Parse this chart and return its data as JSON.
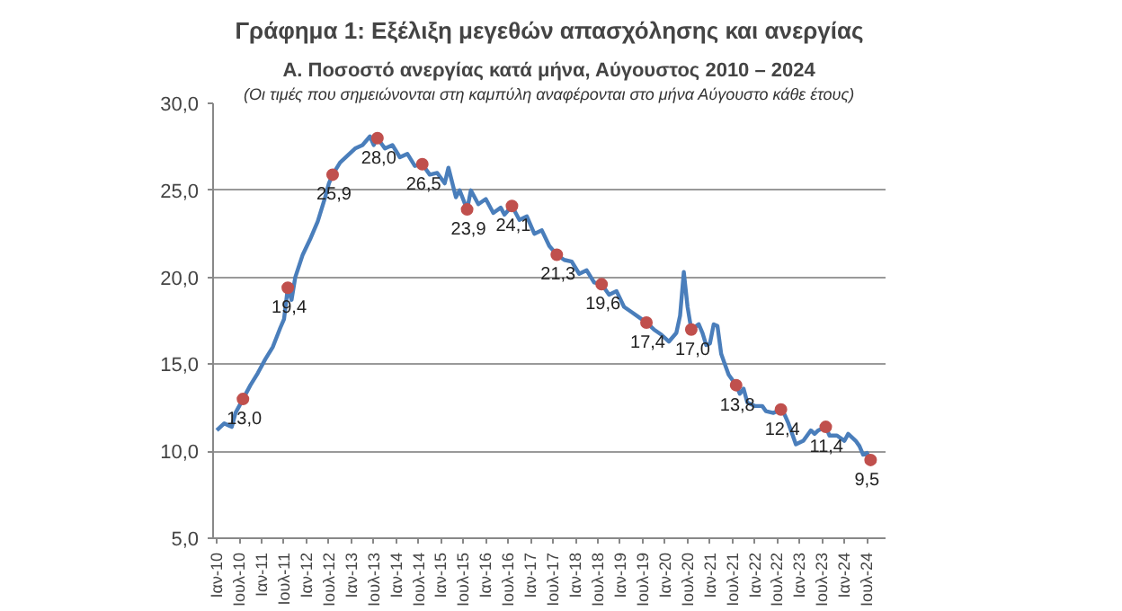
{
  "chart_data": {
    "type": "line",
    "title": "Γράφημα 1: Εξέλιξη μεγεθών απασχόλησης και ανεργίας",
    "subtitle": "Α. Ποσοστό ανεργίας κατά μήνα, Αύγουστος 2010 – 2024",
    "annotations": [
      "(Οι τιμές που σημειώνονται στη καμπύλη αναφέρονται στο μήνα Αύγουστο κάθε έτους)"
    ],
    "grid": "y",
    "ylim": [
      5,
      30
    ],
    "yticks": [
      {
        "value": 5,
        "label": "5,0"
      },
      {
        "value": 10,
        "label": "10,0"
      },
      {
        "value": 15,
        "label": "15,0"
      },
      {
        "value": 20,
        "label": "20,0"
      },
      {
        "value": 25,
        "label": "25,0"
      },
      {
        "value": 30,
        "label": "30,0"
      }
    ],
    "xlim": [
      "2009-12",
      "2024-12"
    ],
    "xticks": [
      {
        "value": "2010-01",
        "label": "Ιαν-10"
      },
      {
        "value": "2010-07",
        "label": "Ιουλ-10"
      },
      {
        "value": "2011-01",
        "label": "Ιαν-11"
      },
      {
        "value": "2011-07",
        "label": "Ιουλ-11"
      },
      {
        "value": "2012-01",
        "label": "Ιαν-12"
      },
      {
        "value": "2012-07",
        "label": "Ιουλ-12"
      },
      {
        "value": "2013-01",
        "label": "Ιαν-13"
      },
      {
        "value": "2013-07",
        "label": "Ιουλ-13"
      },
      {
        "value": "2014-01",
        "label": "Ιαν-14"
      },
      {
        "value": "2014-07",
        "label": "Ιουλ-14"
      },
      {
        "value": "2015-01",
        "label": "Ιαν-15"
      },
      {
        "value": "2015-07",
        "label": "Ιουλ-15"
      },
      {
        "value": "2016-01",
        "label": "Ιαν-16"
      },
      {
        "value": "2016-07",
        "label": "Ιουλ-16"
      },
      {
        "value": "2017-01",
        "label": "Ιαν-17"
      },
      {
        "value": "2017-07",
        "label": "Ιουλ-17"
      },
      {
        "value": "2018-01",
        "label": "Ιαν-18"
      },
      {
        "value": "2018-07",
        "label": "Ιουλ-18"
      },
      {
        "value": "2019-01",
        "label": "Ιαν-19"
      },
      {
        "value": "2019-07",
        "label": "Ιουλ-19"
      },
      {
        "value": "2020-01",
        "label": "Ιαν-20"
      },
      {
        "value": "2020-07",
        "label": "Ιουλ-20"
      },
      {
        "value": "2021-01",
        "label": "Ιαν-21"
      },
      {
        "value": "2021-07",
        "label": "Ιουλ-21"
      },
      {
        "value": "2022-01",
        "label": "Ιαν-22"
      },
      {
        "value": "2022-07",
        "label": "Ιουλ-22"
      },
      {
        "value": "2023-01",
        "label": "Ιαν-23"
      },
      {
        "value": "2023-07",
        "label": "Ιουλ-23"
      },
      {
        "value": "2024-01",
        "label": "Ιαν-24"
      },
      {
        "value": "2024-07",
        "label": "Ιουλ-24"
      }
    ],
    "series": [
      {
        "type": "line",
        "color": "#4a7ebb",
        "marker": "none",
        "line_style": "solid",
        "x": [
          "2010-01",
          "2010-03",
          "2010-05",
          "2010-06",
          "2010-08",
          "2010-10",
          "2010-12",
          "2011-02",
          "2011-04",
          "2011-06",
          "2011-07",
          "2011-08",
          "2011-09",
          "2011-10",
          "2011-12",
          "2012-02",
          "2012-04",
          "2012-06",
          "2012-07",
          "2012-08",
          "2012-10",
          "2012-12",
          "2013-02",
          "2013-04",
          "2013-06",
          "2013-07",
          "2013-08",
          "2013-10",
          "2013-12",
          "2014-02",
          "2014-04",
          "2014-06",
          "2014-08",
          "2014-10",
          "2014-12",
          "2015-02",
          "2015-03",
          "2015-05",
          "2015-06",
          "2015-08",
          "2015-09",
          "2015-11",
          "2016-01",
          "2016-03",
          "2016-05",
          "2016-06",
          "2016-08",
          "2016-10",
          "2016-12",
          "2017-02",
          "2017-04",
          "2017-06",
          "2017-08",
          "2017-10",
          "2017-12",
          "2018-02",
          "2018-04",
          "2018-06",
          "2018-08",
          "2018-10",
          "2018-12",
          "2019-02",
          "2019-04",
          "2019-06",
          "2019-08",
          "2019-10",
          "2019-12",
          "2020-02",
          "2020-04",
          "2020-05",
          "2020-06",
          "2020-07",
          "2020-08",
          "2020-10",
          "2020-11",
          "2020-12",
          "2021-01",
          "2021-02",
          "2021-03",
          "2021-04",
          "2021-05",
          "2021-06",
          "2021-08",
          "2021-09",
          "2021-10",
          "2021-11",
          "2022-01",
          "2022-03",
          "2022-04",
          "2022-06",
          "2022-08",
          "2022-09",
          "2022-10",
          "2022-12",
          "2023-02",
          "2023-04",
          "2023-05",
          "2023-06",
          "2023-08",
          "2023-09",
          "2023-11",
          "2024-01",
          "2024-02",
          "2024-04",
          "2024-05",
          "2024-06",
          "2024-07",
          "2024-08"
        ],
        "values": [
          11.2,
          11.6,
          11.4,
          12.2,
          13.0,
          13.8,
          14.5,
          15.3,
          16.0,
          17.1,
          17.6,
          19.4,
          18.7,
          20.0,
          21.3,
          22.2,
          23.2,
          24.6,
          25.4,
          25.9,
          26.6,
          27.0,
          27.4,
          27.6,
          28.1,
          27.6,
          28.0,
          27.4,
          27.6,
          26.9,
          27.1,
          26.4,
          26.5,
          25.9,
          26.0,
          25.4,
          26.3,
          24.6,
          25.0,
          23.9,
          25.0,
          24.2,
          24.5,
          23.7,
          24.0,
          23.6,
          24.1,
          23.3,
          23.5,
          22.5,
          22.7,
          21.8,
          21.3,
          21.0,
          20.9,
          20.2,
          20.4,
          19.7,
          19.6,
          19.0,
          19.2,
          18.3,
          18.0,
          17.7,
          17.4,
          17.0,
          16.7,
          16.3,
          16.8,
          17.8,
          20.3,
          18.3,
          17.0,
          17.3,
          16.8,
          16.1,
          16.2,
          17.3,
          17.2,
          15.6,
          15.0,
          14.4,
          13.8,
          13.3,
          13.6,
          12.8,
          12.6,
          12.6,
          12.3,
          12.2,
          12.4,
          12.1,
          11.6,
          10.4,
          10.6,
          11.2,
          11.0,
          11.2,
          11.4,
          10.9,
          10.9,
          10.6,
          11.0,
          10.6,
          10.3,
          9.8,
          9.9,
          9.5
        ]
      },
      {
        "type": "scatter",
        "color": "#c0504d",
        "marker": "circle",
        "x": [
          "2010-08",
          "2011-08",
          "2012-08",
          "2013-08",
          "2014-08",
          "2015-08",
          "2016-08",
          "2017-08",
          "2018-08",
          "2019-08",
          "2020-08",
          "2021-08",
          "2022-08",
          "2023-08",
          "2024-08"
        ],
        "values": [
          13.0,
          19.4,
          25.9,
          28.0,
          26.5,
          23.9,
          24.1,
          21.3,
          19.6,
          17.4,
          17.0,
          13.8,
          12.4,
          11.4,
          9.5
        ],
        "value_labels": [
          "13,0",
          "19,4",
          "25,9",
          "28,0",
          "26,5",
          "23,9",
          "24,1",
          "21,3",
          "19,6",
          "17,4",
          "17,0",
          "13,8",
          "12,4",
          "11,4",
          "9,5"
        ]
      }
    ]
  }
}
